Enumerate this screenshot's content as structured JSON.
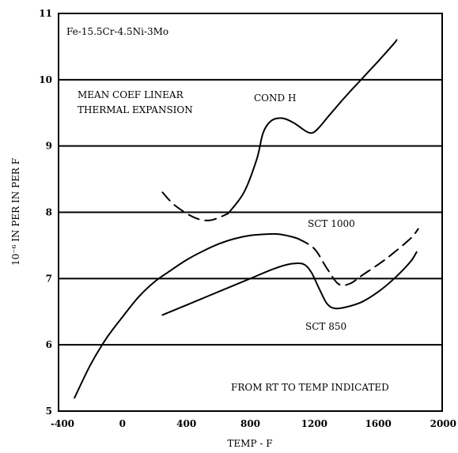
{
  "chart_data": {
    "type": "line",
    "title": "",
    "xlabel": "TEMP - F",
    "ylabel": "10⁻⁶ IN PER IN PER F",
    "xlim": [
      -400,
      2000
    ],
    "ylim": [
      5,
      11
    ],
    "x_ticks": [
      "-400",
      "0",
      "400",
      "800",
      "1200",
      "1600",
      "2000"
    ],
    "y_ticks": [
      "5",
      "6",
      "7",
      "8",
      "9",
      "10",
      "11"
    ],
    "grid": "horizontal",
    "annotations": [
      "Fe-15.5Cr-4.5Ni-3Mo",
      "MEAN COEF LINEAR",
      "THERMAL EXPANSION",
      "FROM RT TO TEMP INDICATED"
    ],
    "series": [
      {
        "name": "COND H",
        "segments": [
          {
            "style": "dashed",
            "points": [
              [
                250,
                8.3
              ],
              [
                330,
                8.1
              ],
              [
                450,
                7.92
              ],
              [
                550,
                7.88
              ],
              [
                660,
                7.98
              ]
            ]
          },
          {
            "style": "solid",
            "points": [
              [
                660,
                7.98
              ],
              [
                760,
                8.3
              ],
              [
                840,
                8.8
              ],
              [
                880,
                9.2
              ],
              [
                930,
                9.38
              ],
              [
                1000,
                9.42
              ],
              [
                1070,
                9.35
              ],
              [
                1150,
                9.22
              ],
              [
                1190,
                9.2
              ],
              [
                1230,
                9.28
              ],
              [
                1300,
                9.48
              ],
              [
                1400,
                9.76
              ],
              [
                1500,
                10.02
              ],
              [
                1600,
                10.28
              ],
              [
                1700,
                10.55
              ],
              [
                1715,
                10.6
              ]
            ]
          }
        ]
      },
      {
        "name": "SCT 1000",
        "segments": [
          {
            "style": "solid",
            "points": [
              [
                -300,
                5.2
              ],
              [
                -200,
                5.7
              ],
              [
                -100,
                6.1
              ],
              [
                0,
                6.42
              ],
              [
                100,
                6.72
              ],
              [
                200,
                6.95
              ],
              [
                300,
                7.12
              ],
              [
                400,
                7.28
              ],
              [
                500,
                7.41
              ],
              [
                600,
                7.52
              ],
              [
                700,
                7.6
              ],
              [
                800,
                7.65
              ],
              [
                900,
                7.67
              ],
              [
                980,
                7.67
              ],
              [
                1060,
                7.63
              ],
              [
                1100,
                7.6
              ]
            ]
          },
          {
            "style": "dashed",
            "points": [
              [
                1100,
                7.6
              ],
              [
                1200,
                7.45
              ],
              [
                1280,
                7.15
              ],
              [
                1350,
                6.92
              ],
              [
                1420,
                6.92
              ],
              [
                1500,
                7.05
              ],
              [
                1650,
                7.3
              ],
              [
                1800,
                7.6
              ],
              [
                1850,
                7.75
              ]
            ]
          }
        ]
      },
      {
        "name": "SCT 850",
        "segments": [
          {
            "style": "solid",
            "points": [
              [
                250,
                6.45
              ],
              [
                400,
                6.6
              ],
              [
                600,
                6.8
              ],
              [
                800,
                7.0
              ],
              [
                950,
                7.15
              ],
              [
                1050,
                7.22
              ],
              [
                1130,
                7.22
              ],
              [
                1180,
                7.1
              ],
              [
                1230,
                6.85
              ],
              [
                1280,
                6.62
              ],
              [
                1330,
                6.55
              ],
              [
                1400,
                6.57
              ],
              [
                1500,
                6.65
              ],
              [
                1600,
                6.8
              ],
              [
                1700,
                7.0
              ],
              [
                1800,
                7.25
              ],
              [
                1840,
                7.4
              ]
            ]
          }
        ]
      }
    ]
  }
}
